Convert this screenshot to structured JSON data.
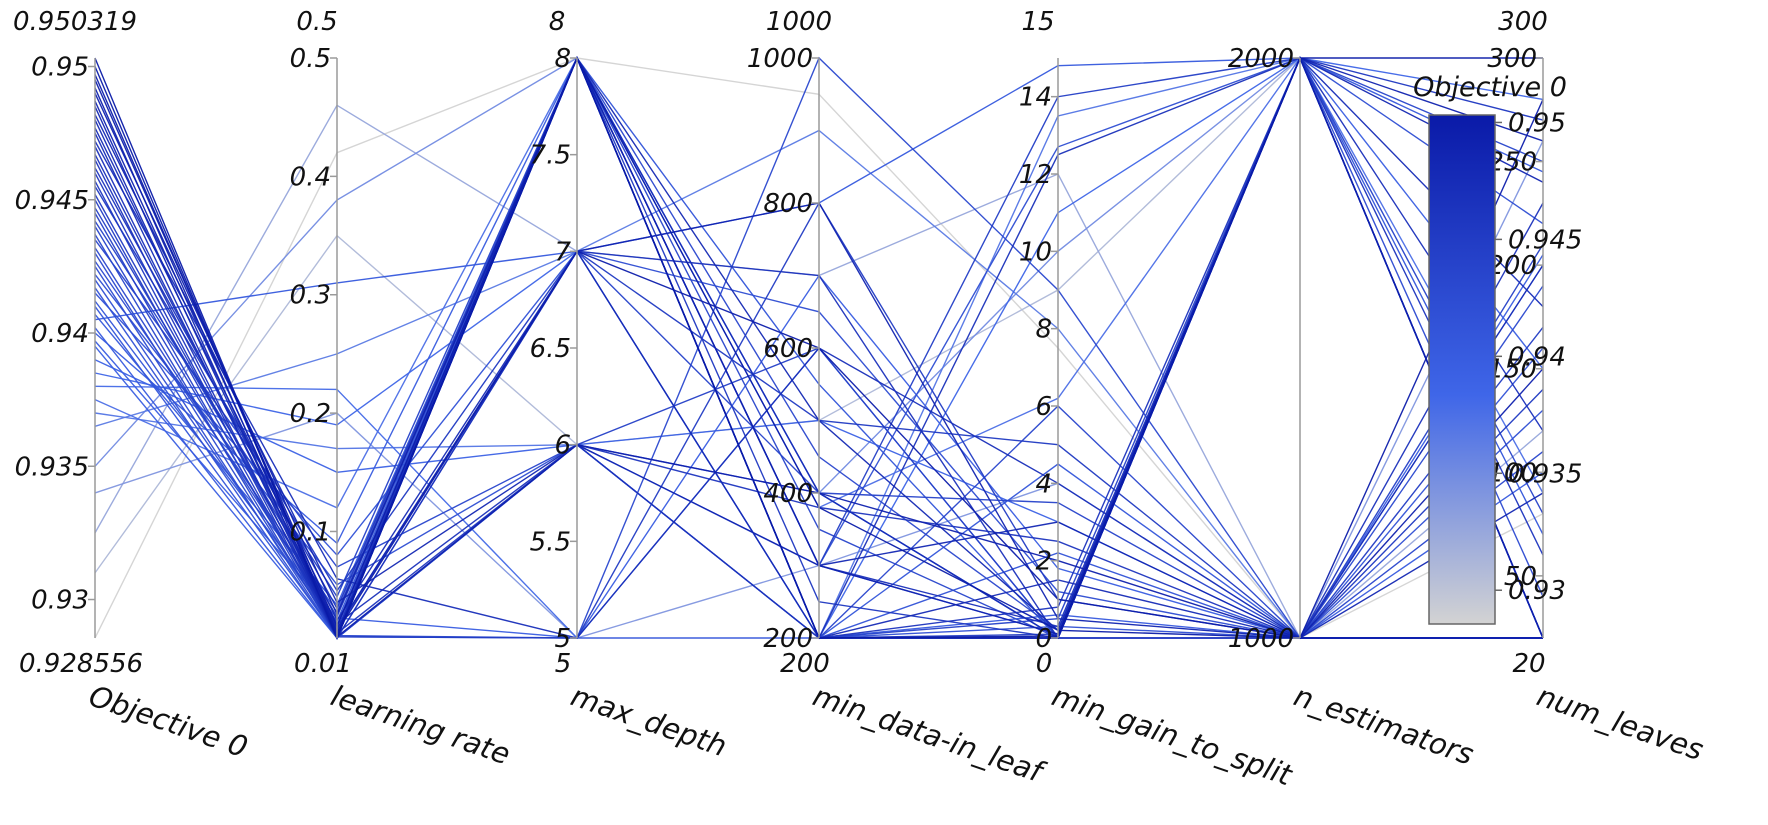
{
  "chart_data": {
    "type": "parallel_coordinates",
    "axes": [
      {
        "name": "Objective 0",
        "min": 0.928556,
        "max": 0.950319,
        "min_label": "0.928556",
        "max_label": "0.950319",
        "ticks": [
          {
            "v": 0.93,
            "t": "0.93"
          },
          {
            "v": 0.935,
            "t": "0.935"
          },
          {
            "v": 0.94,
            "t": "0.94"
          },
          {
            "v": 0.945,
            "t": "0.945"
          },
          {
            "v": 0.95,
            "t": "0.95"
          }
        ]
      },
      {
        "name": "learning rate",
        "min": 0.01,
        "max": 0.5,
        "min_label": "0.01",
        "max_label": "0.5",
        "ticks": [
          {
            "v": 0.1,
            "t": "0.1"
          },
          {
            "v": 0.2,
            "t": "0.2"
          },
          {
            "v": 0.3,
            "t": "0.3"
          },
          {
            "v": 0.4,
            "t": "0.4"
          },
          {
            "v": 0.5,
            "t": "0.5"
          }
        ]
      },
      {
        "name": "max_depth",
        "min": 5,
        "max": 8,
        "min_label": "5",
        "max_label": "8",
        "ticks": [
          {
            "v": 5,
            "t": "5"
          },
          {
            "v": 5.5,
            "t": "5.5"
          },
          {
            "v": 6,
            "t": "6"
          },
          {
            "v": 6.5,
            "t": "6.5"
          },
          {
            "v": 7,
            "t": "7"
          },
          {
            "v": 7.5,
            "t": "7.5"
          },
          {
            "v": 8,
            "t": "8"
          }
        ]
      },
      {
        "name": "min_data-in_leaf",
        "min": 200,
        "max": 1000,
        "min_label": "200",
        "max_label": "1000",
        "ticks": [
          {
            "v": 200,
            "t": "200"
          },
          {
            "v": 400,
            "t": "400"
          },
          {
            "v": 600,
            "t": "600"
          },
          {
            "v": 800,
            "t": "800"
          },
          {
            "v": 1000,
            "t": "1000"
          }
        ]
      },
      {
        "name": "min_gain_to_split",
        "min": 0,
        "max": 15,
        "min_label": "0",
        "max_label": "15",
        "ticks": [
          {
            "v": 0,
            "t": "0"
          },
          {
            "v": 2,
            "t": "2"
          },
          {
            "v": 4,
            "t": "4"
          },
          {
            "v": 6,
            "t": "6"
          },
          {
            "v": 8,
            "t": "8"
          },
          {
            "v": 10,
            "t": "10"
          },
          {
            "v": 12,
            "t": "12"
          },
          {
            "v": 14,
            "t": "14"
          }
        ]
      },
      {
        "name": "n_estimators",
        "min": 1000,
        "max": 2000,
        "min_label": "",
        "max_label": "",
        "ticks": [
          {
            "v": 1000,
            "t": "1000"
          },
          {
            "v": 2000,
            "t": "2000"
          }
        ]
      },
      {
        "name": "num_leaves",
        "min": 20,
        "max": 300,
        "min_label": "20",
        "max_label": "300",
        "ticks": [
          {
            "v": 50,
            "t": "50"
          },
          {
            "v": 100,
            "t": "100"
          },
          {
            "v": 150,
            "t": "150"
          },
          {
            "v": 200,
            "t": "200"
          },
          {
            "v": 250,
            "t": "250"
          },
          {
            "v": 300,
            "t": "300"
          }
        ]
      }
    ],
    "colorbar": {
      "title": "Objective 0",
      "min": 0.928556,
      "max": 0.950319,
      "color_low": "#d3d3d3",
      "color_mid": "#3f66e8",
      "color_high": "#0a1aa8",
      "ticks": [
        {
          "v": 0.93,
          "t": "0.93"
        },
        {
          "v": 0.935,
          "t": "0.935"
        },
        {
          "v": 0.94,
          "t": "0.94"
        },
        {
          "v": 0.945,
          "t": "0.945"
        },
        {
          "v": 0.95,
          "t": "0.95"
        }
      ]
    },
    "lines": [
      [
        0.950319,
        0.01,
        8,
        200,
        0.05,
        2000,
        300
      ],
      [
        0.95,
        0.012,
        8,
        380,
        0.2,
        1000,
        20
      ],
      [
        0.9497,
        0.015,
        7,
        600,
        1.0,
        1000,
        280
      ],
      [
        0.9495,
        0.02,
        8,
        200,
        0.0,
        2000,
        20
      ],
      [
        0.9492,
        0.011,
        6,
        400,
        2.0,
        1000,
        150
      ],
      [
        0.949,
        0.03,
        8,
        300,
        0.1,
        2000,
        260
      ],
      [
        0.9487,
        0.018,
        7,
        800,
        0.5,
        1000,
        20
      ],
      [
        0.9485,
        0.01,
        8,
        200,
        0.0,
        2000,
        240
      ],
      [
        0.9482,
        0.04,
        6,
        300,
        3.0,
        1000,
        90
      ],
      [
        0.948,
        0.013,
        8,
        500,
        0.2,
        2000,
        20
      ],
      [
        0.9477,
        0.025,
        7,
        200,
        1.5,
        1000,
        200
      ],
      [
        0.9475,
        0.01,
        8,
        400,
        0.0,
        2000,
        180
      ],
      [
        0.9472,
        0.06,
        5,
        600,
        4.0,
        1000,
        20
      ],
      [
        0.947,
        0.016,
        8,
        300,
        0.3,
        2000,
        120
      ],
      [
        0.9467,
        0.022,
        6,
        200,
        12.5,
        2000,
        20
      ],
      [
        0.9465,
        0.01,
        7,
        700,
        0.0,
        1000,
        230
      ],
      [
        0.9462,
        0.035,
        8,
        200,
        0.8,
        2000,
        60
      ],
      [
        0.946,
        0.014,
        6,
        380,
        2.5,
        1000,
        20
      ],
      [
        0.9457,
        0.01,
        8,
        250,
        0.0,
        2000,
        270
      ],
      [
        0.9455,
        0.05,
        7,
        500,
        5.0,
        1000,
        140
      ],
      [
        0.9452,
        0.019,
        8,
        200,
        0.1,
        2000,
        20
      ],
      [
        0.945,
        0.011,
        5,
        800,
        1.0,
        1000,
        170
      ],
      [
        0.9447,
        0.028,
        8,
        300,
        14.0,
        2000,
        20
      ],
      [
        0.9445,
        0.01,
        6,
        600,
        0.0,
        1000,
        210
      ],
      [
        0.9442,
        0.045,
        8,
        200,
        0.5,
        2000,
        80
      ],
      [
        0.944,
        0.017,
        7,
        400,
        3.5,
        1000,
        20
      ],
      [
        0.9437,
        0.01,
        8,
        350,
        0.0,
        2000,
        250
      ],
      [
        0.9435,
        0.07,
        6,
        200,
        6.0,
        1000,
        110
      ],
      [
        0.9432,
        0.021,
        8,
        450,
        0.2,
        2000,
        20
      ],
      [
        0.943,
        0.012,
        5,
        1000,
        9.0,
        1000,
        190
      ],
      [
        0.9427,
        0.032,
        8,
        200,
        0.0,
        2000,
        40
      ],
      [
        0.9425,
        0.01,
        7,
        650,
        1.2,
        1000,
        20
      ],
      [
        0.9422,
        0.055,
        6,
        300,
        12.7,
        2000,
        220
      ],
      [
        0.942,
        0.015,
        8,
        200,
        0.3,
        1000,
        130
      ],
      [
        0.9417,
        0.01,
        6,
        400,
        0.0,
        2000,
        20
      ],
      [
        0.9415,
        0.08,
        7,
        200,
        2.2,
        1000,
        160
      ],
      [
        0.9412,
        0.024,
        8,
        550,
        0.0,
        2000,
        70
      ],
      [
        0.941,
        0.011,
        5,
        200,
        4.5,
        1000,
        20
      ],
      [
        0.9407,
        0.038,
        8,
        300,
        0.1,
        2000,
        245
      ],
      [
        0.9405,
        0.31,
        7,
        800,
        14.8,
        2000,
        20
      ],
      [
        0.9402,
        0.01,
        6,
        200,
        0.6,
        1000,
        100
      ],
      [
        0.94,
        0.09,
        8,
        400,
        0.0,
        2000,
        20
      ],
      [
        0.9397,
        0.027,
        5,
        700,
        1.8,
        1000,
        205
      ],
      [
        0.9395,
        0.01,
        8,
        200,
        0.0,
        2000,
        150
      ],
      [
        0.939,
        0.15,
        6,
        500,
        3.0,
        1000,
        20
      ],
      [
        0.9385,
        0.19,
        7,
        200,
        11.0,
        2000,
        280
      ],
      [
        0.938,
        0.22,
        5,
        600,
        0.0,
        1000,
        20
      ],
      [
        0.9375,
        0.12,
        8,
        380,
        6.2,
        2000,
        90
      ],
      [
        0.937,
        0.17,
        6,
        200,
        13.5,
        2000,
        20
      ],
      [
        0.9365,
        0.25,
        7,
        900,
        8.0,
        1000,
        200
      ],
      [
        0.935,
        0.38,
        8,
        400,
        10.0,
        2000,
        20
      ],
      [
        0.934,
        0.2,
        5,
        300,
        4.0,
        1000,
        260
      ],
      [
        0.9325,
        0.46,
        7,
        700,
        12.0,
        1000,
        120
      ],
      [
        0.931,
        0.35,
        6,
        500,
        9.0,
        2000,
        20
      ],
      [
        0.928556,
        0.42,
        8,
        950,
        7.5,
        1000,
        80
      ]
    ]
  }
}
